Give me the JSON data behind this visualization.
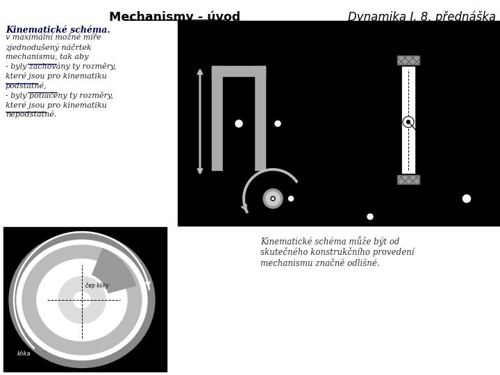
{
  "title": "Mechanismy - úvod",
  "subtitle": "Dynamika I, 8. přednáška",
  "heading": "Kinematické schéma.",
  "body_lines": [
    "v maximální možné míře",
    "zjednodušený náčrtek",
    "mechanismu, tak aby",
    "- byly zachovány ty rozměry,",
    "které jsou pro kinematiku",
    "podstatné,",
    "- byly potlačeny ty rozměry,",
    "které jsou pro kinematiku",
    "nepodstatné."
  ],
  "footer_lines": [
    "Kinematické schéma může být od",
    "skutečného konstrukčního provedení",
    "mechanismu značně odlišné."
  ],
  "colors": {
    "black": "#000000",
    "white": "#ffffff",
    "gray": "#aaaaaa",
    "light_gray": "#cccccc",
    "dark_gray": "#888888",
    "heading": "#00004d",
    "body": "#222222",
    "title": "#000000"
  }
}
